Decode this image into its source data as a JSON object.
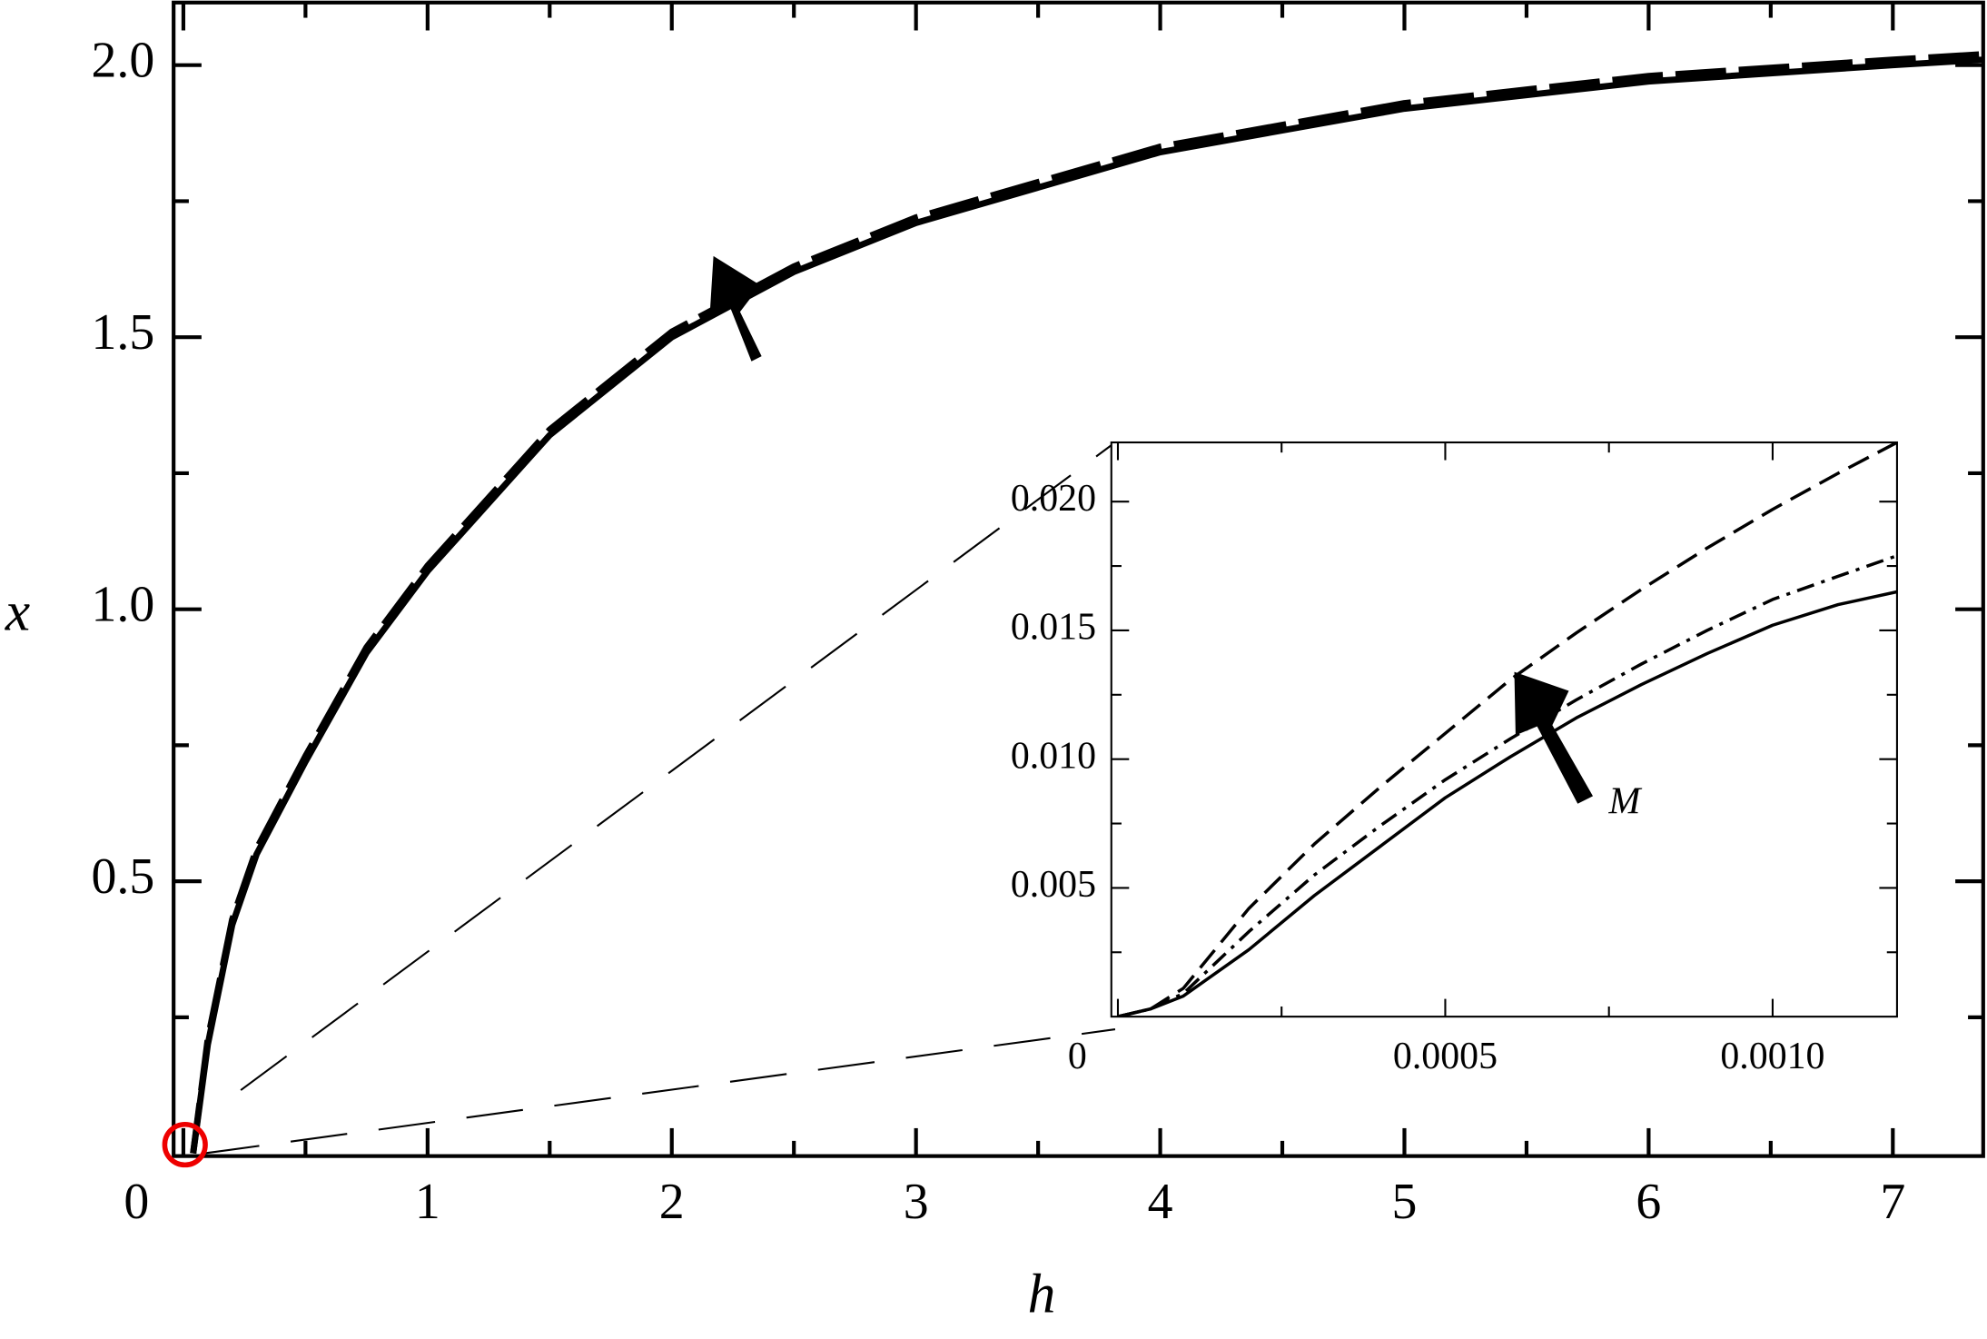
{
  "chart_data": [
    {
      "type": "line",
      "x_label": "h",
      "y_label": "x",
      "x": [
        0.04,
        0.1,
        0.2,
        0.3,
        0.5,
        0.75,
        1,
        1.5,
        2,
        2.5,
        3,
        4,
        5,
        6,
        7,
        7.37
      ],
      "series": [
        {
          "style": "solid",
          "color": "#000000",
          "values": [
            0,
            0.2,
            0.42,
            0.55,
            0.72,
            0.92,
            1.07,
            1.32,
            1.5,
            1.62,
            1.71,
            1.84,
            1.92,
            1.97,
            2.0,
            2.01
          ]
        },
        {
          "style": "dashed",
          "color": "#000000",
          "values": [
            0,
            0.21,
            0.43,
            0.56,
            0.73,
            0.93,
            1.08,
            1.33,
            1.51,
            1.63,
            1.72,
            1.85,
            1.93,
            1.98,
            2.01,
            2.02
          ]
        }
      ],
      "xlim": [
        -0.04,
        7.37
      ],
      "ylim": [
        -0.005,
        2.115
      ],
      "xticks": [
        0,
        1,
        2,
        3,
        4,
        5,
        6,
        7
      ],
      "yticks": [
        0.5,
        {
          "value": 1,
          "label": "1.0"
        },
        1.5,
        {
          "value": 2,
          "label": "2.0"
        }
      ],
      "xminor": [
        0.5,
        1.5,
        2.5,
        3.5,
        4.5,
        5.5,
        6.5
      ],
      "yminor": [
        0.25,
        0.75,
        1.25,
        1.75
      ]
    },
    {
      "type": "line",
      "annotation": "M",
      "x": [
        0,
        5e-05,
        0.0001,
        0.0002,
        0.0003,
        0.0004,
        0.0005,
        0.0006,
        0.0007,
        0.0008,
        0.0009,
        0.001,
        0.0011,
        0.00119
      ],
      "series": [
        {
          "style": "solid",
          "color": "#000000",
          "values": [
            0,
            0.0003,
            0.0008,
            0.0026,
            0.0047,
            0.0066,
            0.0085,
            0.0101,
            0.0116,
            0.0129,
            0.0141,
            0.0152,
            0.016,
            0.0165
          ]
        },
        {
          "style": "dashdot",
          "color": "#000000",
          "values": [
            0,
            0.0003,
            0.0009,
            0.0033,
            0.0055,
            0.0074,
            0.0092,
            0.0108,
            0.0123,
            0.0137,
            0.015,
            0.0162,
            0.0171,
            0.0179
          ]
        },
        {
          "style": "dashed",
          "color": "#000000",
          "values": [
            0,
            0.0003,
            0.0011,
            0.0042,
            0.0067,
            0.0089,
            0.011,
            0.0131,
            0.0149,
            0.0166,
            0.0182,
            0.0197,
            0.0211,
            0.0223
          ]
        }
      ],
      "xlim": [
        -1e-05,
        0.00119
      ],
      "ylim": [
        0,
        0.0223
      ],
      "xticks": [
        0,
        0.0005,
        {
          "value": 0.001,
          "label": "0.0010"
        }
      ],
      "yticks": [
        0.005,
        {
          "value": 0.01,
          "label": "0.010"
        },
        {
          "value": 0.015,
          "label": "0.015"
        },
        {
          "value": 0.02,
          "label": "0.020"
        }
      ],
      "xminor": [
        0.00025,
        0.00075
      ],
      "yminor": [
        0.0025,
        0.0075,
        0.0125,
        0.0175
      ]
    }
  ]
}
